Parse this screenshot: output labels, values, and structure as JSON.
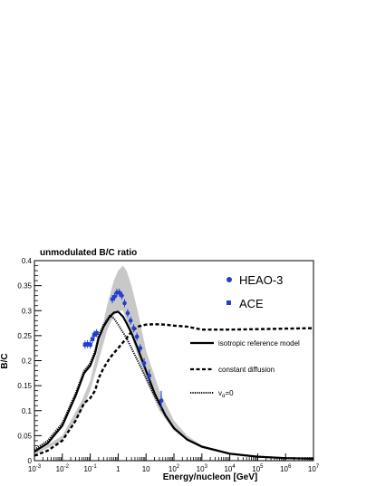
{
  "chart_data": {
    "type": "line",
    "title": "unmodulated B/C ratio",
    "xlabel": "Energy/nucleon [GeV]",
    "ylabel": "B/C",
    "x_scale": "log",
    "xlim": [
      0.001,
      10000000
    ],
    "ylim": [
      0,
      0.4
    ],
    "x_ticks": [
      0.001,
      0.01,
      0.1,
      1,
      10,
      100,
      1000,
      10000,
      100000,
      1000000,
      10000000
    ],
    "x_tick_labels": [
      {
        "base": "10",
        "exp": "-3"
      },
      {
        "base": "10",
        "exp": "-2"
      },
      {
        "base": "10",
        "exp": "-1"
      },
      {
        "base": "1",
        "exp": ""
      },
      {
        "base": "10",
        "exp": ""
      },
      {
        "base": "10",
        "exp": "2"
      },
      {
        "base": "10",
        "exp": "3"
      },
      {
        "base": "10",
        "exp": "4"
      },
      {
        "base": "10",
        "exp": "5"
      },
      {
        "base": "10",
        "exp": "6"
      },
      {
        "base": "10",
        "exp": "7"
      }
    ],
    "y_ticks": [
      0,
      0.05,
      0.1,
      0.15,
      0.2,
      0.25,
      0.3,
      0.35,
      0.4
    ],
    "y_tick_labels": [
      "0",
      "0.05",
      "0.1",
      "0.15",
      "0.2",
      "0.25",
      "0.3",
      "0.35",
      "0.4"
    ],
    "legend_placement": "right",
    "band": {
      "color": "#c8c8c8",
      "x": [
        0.001,
        0.01,
        0.05,
        0.1,
        0.2,
        0.4,
        0.7,
        1,
        1.5,
        2,
        3,
        5,
        10,
        30,
        100,
        300,
        1000,
        10000,
        100000,
        1000000,
        10000000
      ],
      "upper": [
        0.015,
        0.05,
        0.12,
        0.16,
        0.23,
        0.31,
        0.36,
        0.38,
        0.39,
        0.38,
        0.35,
        0.3,
        0.22,
        0.14,
        0.08,
        0.05,
        0.03,
        0.015,
        0.008,
        0.005,
        0.004
      ],
      "lower": [
        0.012,
        0.04,
        0.1,
        0.14,
        0.2,
        0.26,
        0.29,
        0.3,
        0.3,
        0.28,
        0.25,
        0.21,
        0.16,
        0.1,
        0.06,
        0.04,
        0.025,
        0.012,
        0.006,
        0.004,
        0.003
      ]
    },
    "series": [
      {
        "name": "isotropic reference model",
        "style": "solid",
        "x": [
          0.001,
          0.003,
          0.01,
          0.03,
          0.06,
          0.1,
          0.15,
          0.2,
          0.3,
          0.5,
          0.7,
          1,
          1.5,
          2,
          3,
          5,
          10,
          20,
          50,
          100,
          300,
          1000,
          10000,
          100000,
          1000000,
          10000000
        ],
        "y": [
          0.018,
          0.035,
          0.07,
          0.13,
          0.175,
          0.19,
          0.215,
          0.245,
          0.268,
          0.288,
          0.296,
          0.298,
          0.288,
          0.275,
          0.255,
          0.225,
          0.18,
          0.135,
          0.09,
          0.065,
          0.042,
          0.028,
          0.014,
          0.008,
          0.005,
          0.004
        ]
      },
      {
        "name": "constant diffusion",
        "style": "dashed",
        "x": [
          0.001,
          0.003,
          0.01,
          0.03,
          0.06,
          0.1,
          0.15,
          0.2,
          0.3,
          0.5,
          0.7,
          1,
          2,
          3,
          5,
          10,
          20,
          50,
          100,
          300,
          1000,
          10000,
          100000,
          1000000,
          10000000
        ],
        "y": [
          0.01,
          0.02,
          0.04,
          0.08,
          0.115,
          0.125,
          0.14,
          0.165,
          0.185,
          0.205,
          0.215,
          0.225,
          0.245,
          0.258,
          0.268,
          0.272,
          0.273,
          0.272,
          0.27,
          0.268,
          0.262,
          0.262,
          0.263,
          0.264,
          0.265
        ]
      },
      {
        "name": "v_α=0",
        "label_main": "v",
        "label_sub": "α",
        "label_rest": "=0",
        "style": "dotted",
        "x": [
          0.001,
          0.003,
          0.01,
          0.03,
          0.06,
          0.1,
          0.15,
          0.2,
          0.3,
          0.5,
          0.7,
          1,
          2,
          3,
          5,
          10,
          20,
          50,
          100,
          300,
          1000,
          10000,
          100000,
          1000000,
          10000000
        ],
        "y": [
          0.022,
          0.04,
          0.075,
          0.135,
          0.18,
          0.195,
          0.22,
          0.25,
          0.272,
          0.29,
          0.285,
          0.272,
          0.245,
          0.225,
          0.2,
          0.165,
          0.13,
          0.09,
          0.065,
          0.042,
          0.028,
          0.014,
          0.008,
          0.005,
          0.004
        ]
      }
    ],
    "data_series": [
      {
        "name": "HEAO-3",
        "marker": "circle",
        "points": [
          {
            "x": 0.62,
            "y": 0.323,
            "err": 0.008
          },
          {
            "x": 0.75,
            "y": 0.328,
            "err": 0.008
          },
          {
            "x": 0.9,
            "y": 0.336,
            "err": 0.008
          },
          {
            "x": 1.1,
            "y": 0.336,
            "err": 0.008
          },
          {
            "x": 1.35,
            "y": 0.33,
            "err": 0.008
          },
          {
            "x": 1.7,
            "y": 0.315,
            "err": 0.008
          },
          {
            "x": 2.2,
            "y": 0.295,
            "err": 0.008
          },
          {
            "x": 2.8,
            "y": 0.28,
            "err": 0.008
          },
          {
            "x": 3.6,
            "y": 0.265,
            "err": 0.008
          },
          {
            "x": 4.7,
            "y": 0.248,
            "err": 0.008
          },
          {
            "x": 6.2,
            "y": 0.225,
            "err": 0.008
          },
          {
            "x": 8.5,
            "y": 0.195,
            "err": 0.01
          },
          {
            "x": 13,
            "y": 0.17,
            "err": 0.012
          },
          {
            "x": 35,
            "y": 0.12,
            "err": 0.02
          }
        ]
      },
      {
        "name": "ACE",
        "marker": "square",
        "points": [
          {
            "x": 0.065,
            "y": 0.232,
            "err": 0.008
          },
          {
            "x": 0.08,
            "y": 0.233,
            "err": 0.008
          },
          {
            "x": 0.1,
            "y": 0.232,
            "err": 0.008
          },
          {
            "x": 0.12,
            "y": 0.243,
            "err": 0.008
          },
          {
            "x": 0.14,
            "y": 0.252,
            "err": 0.008
          },
          {
            "x": 0.17,
            "y": 0.255,
            "err": 0.008
          }
        ]
      }
    ]
  }
}
